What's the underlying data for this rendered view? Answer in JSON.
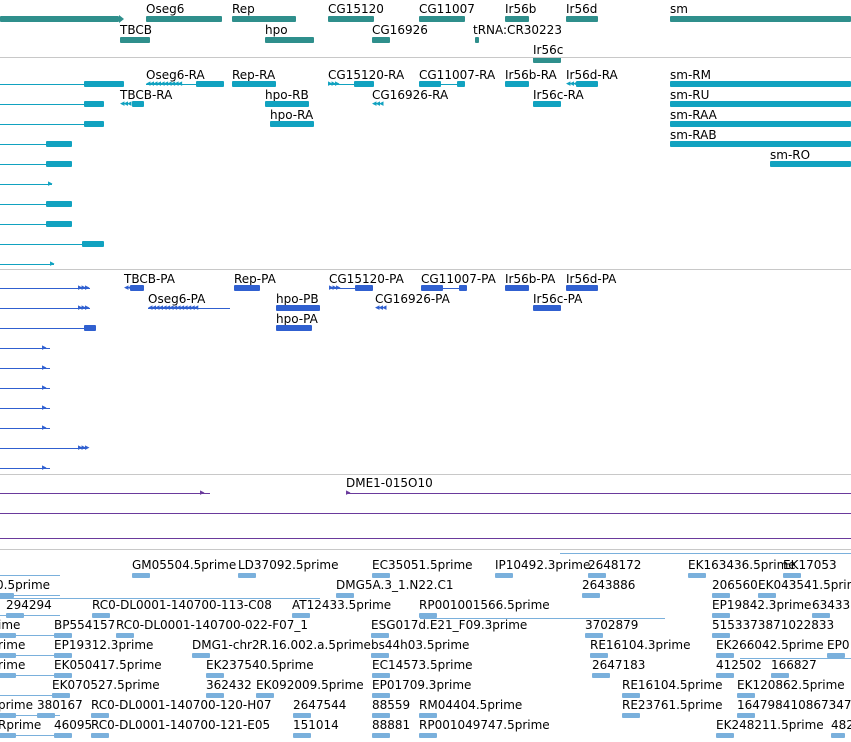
{
  "colors": {
    "gene": "#2f8f8c",
    "transcript": "#11a2c0",
    "protein": "#3060d0",
    "clone": "#6a3a9c",
    "est": "#7ab0dc",
    "divider": "#c8c8c8"
  },
  "tracks": {
    "genes": {
      "labels": [
        "Oseg6",
        "Rep",
        "CG15120",
        "CG11007",
        "Ir56b",
        "Ir56d",
        "sm",
        "TBCB",
        "hpo",
        "CG16926",
        "tRNA:CR30223",
        "Ir56c"
      ]
    },
    "transcripts": {
      "labels": [
        "Oseg6-RA",
        "Rep-RA",
        "CG15120-RA",
        "CG11007-RA",
        "Ir56b-RA",
        "Ir56d-RA",
        "sm-RM",
        "TBCB-RA",
        "hpo-RB",
        "CG16926-RA",
        "Ir56c-RA",
        "sm-RU",
        "hpo-RA",
        "sm-RAA",
        "sm-RAB",
        "sm-RO"
      ]
    },
    "proteins": {
      "labels": [
        "TBCB-PA",
        "Rep-PA",
        "CG15120-PA",
        "CG11007-PA",
        "Ir56b-PA",
        "Ir56d-PA",
        "Oseg6-PA",
        "hpo-PB",
        "CG16926-PA",
        "Ir56c-PA",
        "hpo-PA"
      ]
    },
    "clones": {
      "labels": [
        "DME1-015O10"
      ]
    },
    "ests": {
      "labels": [
        "GM05504.5prime",
        "LD37092.5prime",
        "EC35051.5prime",
        "IP10492.3prime",
        "2648172",
        "EK163436.5prime",
        "EK17053",
        "0.5prime",
        "DMG5A.3_1.N22.C1",
        "2643886",
        "206560",
        "EK043541.5prime",
        "294294",
        "RC0-DL0001-140700-113-C08",
        "AT12433.5prime",
        "RP001001566.5prime",
        "EP19842.3prime",
        "63433",
        "ime",
        "BP554157",
        "RC0-DL0001-140700-022-F07_1",
        "ESG017d.E21_F09.3prime",
        "3702879",
        "5153373871022833",
        "rime",
        "EP19312.3prime",
        "DMG1-chr2R.16.002.a.5prime",
        "bs44h03.5prime",
        "RE16104.3prime",
        "EK266042.5prime",
        "EP0",
        "rime",
        "EK050417.5prime",
        "EK237540.5prime",
        "EC14573.5prime",
        "2647183",
        "412502",
        "166827",
        "EK070527.5prime",
        "362432",
        "EK092009.5prime",
        "EP01709.3prime",
        "RE16104.5prime",
        "EK120862.5prime",
        "prime",
        "380167",
        "RC0-DL0001-140700-120-H07",
        "2647544",
        "88559",
        "RM04404.5prime",
        "RE23761.5prime",
        "164798410867347",
        "Rprime",
        "46095",
        "RC0-DL0001-140700-121-E05",
        "151014",
        "88881",
        "RP001049747.5prime",
        "EK248211.5prime",
        "482"
      ]
    }
  }
}
